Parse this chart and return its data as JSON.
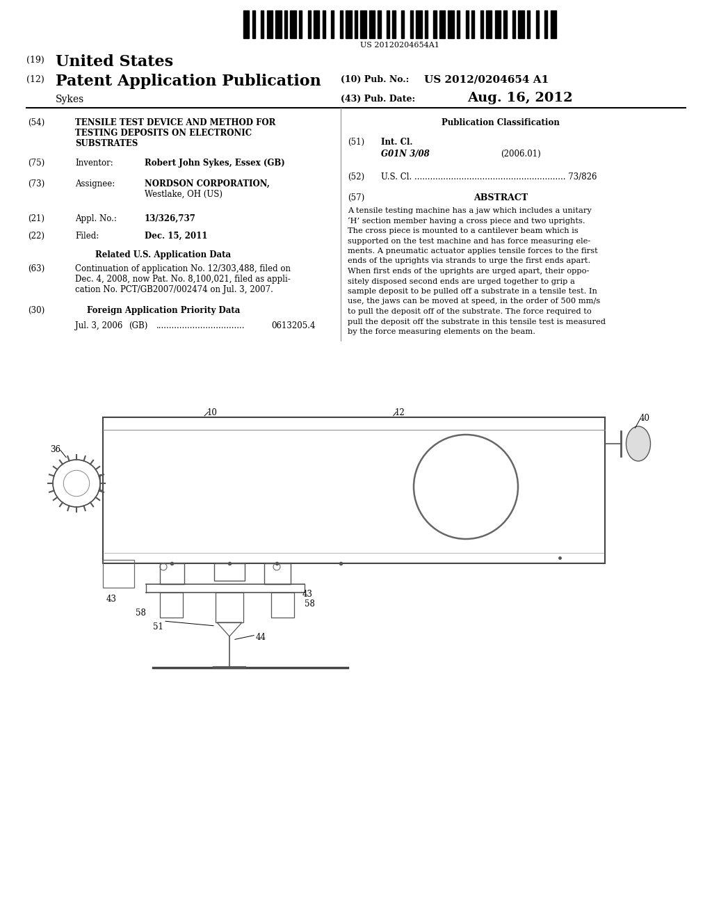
{
  "background_color": "#ffffff",
  "barcode_text": "US 20120204654A1",
  "title_19": "(19) United States",
  "title_12": "(12) Patent Application Publication",
  "title_10_label": "(10) Pub. No.:",
  "title_10_value": "US 2012/0204654 A1",
  "title_43_label": "(43) Pub. Date:",
  "title_43_value": "Aug. 16, 2012",
  "author": "Sykes",
  "field_54_label": "(54)",
  "field_54_text": "TENSILE TEST DEVICE AND METHOD FOR\nTESTING DEPOSITS ON ELECTRONIC\nSUBSTRATES",
  "pub_class_title": "Publication Classification",
  "field_51_label": "(51)",
  "field_51_title": "Int. Cl.",
  "field_51_class": "G01N 3/08",
  "field_51_year": "(2006.01)",
  "field_52_label": "(52)",
  "field_52_text": "U.S. Cl. .......................................................... 73/826",
  "field_57_label": "(57)",
  "field_57_title": "ABSTRACT",
  "abstract_text": "A tensile testing machine has a jaw which includes a unitary ‘H’ section member having a cross piece and two uprights. The cross piece is mounted to a cantilever beam which is supported on the test machine and has force measuring elements. A pneumatic actuator applies tensile forces to the first ends of the uprights via strands to urge the first ends apart. When first ends of the uprights are urged apart, their oppositely disposed second ends are urged together to grip a sample deposit to be pulled off a substrate in a tensile test. In use, the jaws can be moved at speed, in the order of 500 mm/s to pull the deposit off of the substrate. The force required to pull the deposit off the substrate in this tensile test is measured by the force measuring elements on the beam.",
  "field_75_label": "(75)",
  "field_75_title": "Inventor:",
  "field_75_value": "Robert John Sykes, Essex (GB)",
  "field_73_label": "(73)",
  "field_73_title": "Assignee:",
  "field_21_label": "(21)",
  "field_21_title": "Appl. No.:",
  "field_21_value": "13/326,737",
  "field_22_label": "(22)",
  "field_22_title": "Filed:",
  "field_22_value": "Dec. 15, 2011",
  "related_title": "Related U.S. Application Data",
  "field_63_label": "(63)",
  "field_63_text": "Continuation of application No. 12/303,488, filed on\nDec. 4, 2008, now Pat. No. 8,100,021, filed as appli-\ncation No. PCT/GB2007/002474 on Jul. 3, 2007.",
  "field_30_label": "(30)",
  "field_30_title": "Foreign Application Priority Data",
  "field_30_text": "Jul. 3, 2006    (GB) ................................... 0613205.4"
}
